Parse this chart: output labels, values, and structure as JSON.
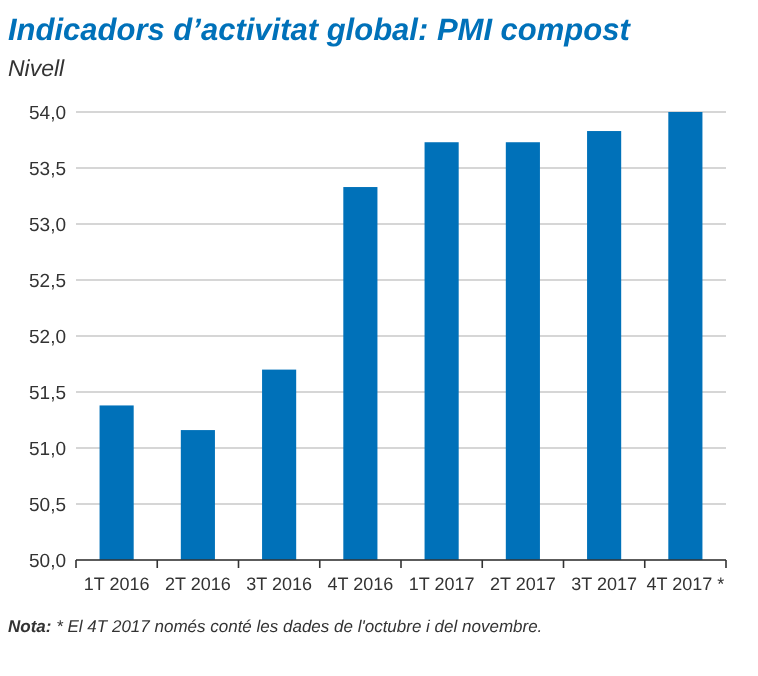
{
  "chart_data": {
    "type": "bar",
    "title": "Indicadors d’activitat global: PMI compost",
    "ylabel": "Nivell",
    "categories": [
      "1T 2016",
      "2T 2016",
      "3T 2016",
      "4T 2016",
      "1T 2017",
      "2T 2017",
      "3T 2017",
      "4T 2017 *"
    ],
    "values": [
      51.38,
      51.16,
      51.7,
      53.33,
      53.73,
      53.73,
      53.83,
      54.0
    ],
    "color": "#0071b9",
    "ylim": [
      50,
      54
    ],
    "yticks": [
      {
        "value": 50,
        "label": "50,0"
      },
      {
        "value": 50.5,
        "label": "50,5"
      },
      {
        "value": 51,
        "label": "51,0"
      },
      {
        "value": 51.5,
        "label": "51,5"
      },
      {
        "value": 52,
        "label": "52,0"
      },
      {
        "value": 52.5,
        "label": "52,5"
      },
      {
        "value": 53,
        "label": "53,0"
      },
      {
        "value": 53.5,
        "label": "53,5"
      },
      {
        "value": 54,
        "label": "54,0"
      }
    ],
    "grid": "y",
    "annotations": [
      "Nota: * El 4T 2017 només conté les dades de l'octubre i del novembre."
    ]
  }
}
